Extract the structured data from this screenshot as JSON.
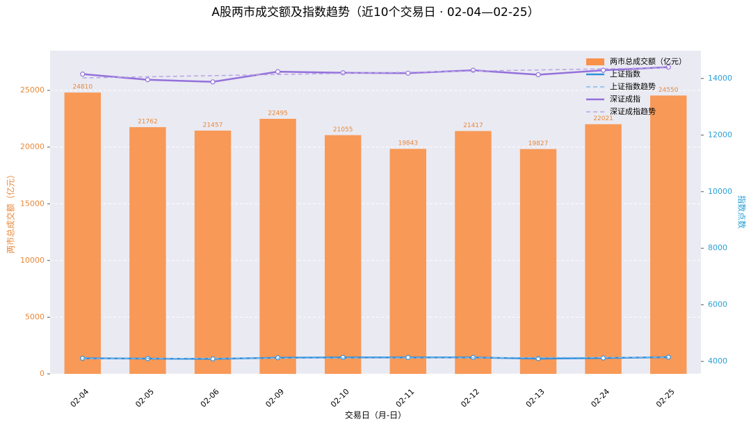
{
  "chart_data": {
    "type": "bar",
    "title": "A股两市成交额及指数趋势（近10个交易日 · 02-04—02-25）",
    "x_label": "交易日（月-日）",
    "y_label": "两市总成交额（亿元）",
    "y2_label": "指数点数",
    "categories": [
      "02-04",
      "02-05",
      "02-06",
      "02-09",
      "02-10",
      "02-11",
      "02-12",
      "02-13",
      "02-24",
      "02-25"
    ],
    "series": [
      {
        "name": "两市总成交额（亿元）",
        "type": "bar",
        "color": "#f8914a",
        "axis": "y",
        "values": [
          24810,
          21762,
          21457,
          22495,
          21055,
          19843,
          21417,
          19827,
          22021,
          24550
        ],
        "show_labels": true
      },
      {
        "name": "上证指数",
        "type": "line",
        "style": "solid",
        "color": "#2f8fdc",
        "axis": "y2",
        "values": [
          4110,
          4100,
          4090,
          4130,
          4140,
          4140,
          4140,
          4100,
          4120,
          4150
        ]
      },
      {
        "name": "上证指数趋势",
        "type": "line",
        "style": "dashed",
        "color": "#7fb8ea",
        "axis": "y2",
        "values": [
          4100,
          4105,
          4110,
          4115,
          4120,
          4125,
          4130,
          4135,
          4140,
          4145
        ]
      },
      {
        "name": "深证成指",
        "type": "line",
        "style": "solid",
        "color": "#9370db",
        "axis": "y2",
        "values": [
          14154,
          13955,
          13880,
          14240,
          14200,
          14187,
          14290,
          14133,
          14290,
          14400
        ]
      },
      {
        "name": "深证成指趋势",
        "type": "line",
        "style": "dashed",
        "color": "#b7a3e6",
        "axis": "y2",
        "values": [
          14020,
          14060,
          14100,
          14140,
          14180,
          14220,
          14260,
          14300,
          14340,
          14380
        ]
      }
    ],
    "ylim": [
      0,
      28500
    ],
    "yticks": [
      0,
      5000,
      10000,
      15000,
      20000,
      25000
    ],
    "y2lim": [
      3560,
      14980
    ],
    "y2ticks": [
      4000,
      6000,
      8000,
      10000,
      12000,
      14000
    ],
    "grid": true,
    "legend": "upper right"
  }
}
